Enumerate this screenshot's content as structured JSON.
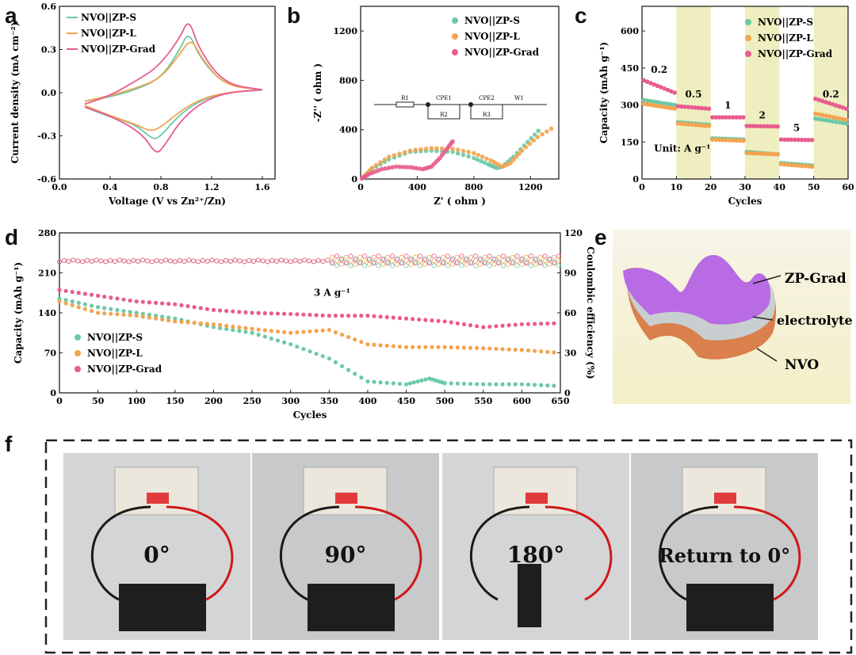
{
  "panel_labels": {
    "a": "a",
    "b": "b",
    "c": "c",
    "d": "d",
    "e": "e",
    "f": "f"
  },
  "colors": {
    "s": "#6cc9a6",
    "l": "#f2a450",
    "grad": "#e85c8f",
    "accent_band": "#efeec0",
    "purple": "#b86be3",
    "grey": "#c9cfd1",
    "orange": "#d9804c"
  },
  "chart_data": [
    {
      "id": "a",
      "type": "line",
      "xlabel": "Voltage (V vs Zn²⁺/Zn)",
      "ylabel": "Current density (mA cm⁻²)",
      "xlim": [
        0.0,
        1.7
      ],
      "ylim": [
        -0.6,
        0.6
      ],
      "xticks": [
        "0.0",
        "0.4",
        "0.8",
        "1.2",
        "1.6"
      ],
      "yticks": [
        "0.6",
        "0.3",
        "0.0",
        "-0.3",
        "-0.6"
      ],
      "legend": [
        "NVO||ZP-S",
        "NVO||ZP-L",
        "NVO||ZP-Grad"
      ],
      "series": [
        {
          "name": "NVO||ZP-S",
          "anodic": [
            [
              0.2,
              -0.06
            ],
            [
              0.4,
              -0.03
            ],
            [
              0.6,
              0.02
            ],
            [
              0.8,
              0.1
            ],
            [
              0.95,
              0.3
            ],
            [
              1.02,
              0.43
            ],
            [
              1.1,
              0.25
            ],
            [
              1.3,
              0.05
            ],
            [
              1.6,
              0.02
            ]
          ],
          "cathodic": [
            [
              1.6,
              0.02
            ],
            [
              1.3,
              0.0
            ],
            [
              1.1,
              -0.06
            ],
            [
              0.95,
              -0.15
            ],
            [
              0.8,
              -0.3
            ],
            [
              0.74,
              -0.33
            ],
            [
              0.6,
              -0.22
            ],
            [
              0.4,
              -0.17
            ],
            [
              0.2,
              -0.1
            ]
          ]
        },
        {
          "name": "NVO||ZP-L",
          "anodic": [
            [
              0.2,
              -0.06
            ],
            [
              0.4,
              -0.02
            ],
            [
              0.6,
              0.03
            ],
            [
              0.8,
              0.1
            ],
            [
              0.95,
              0.27
            ],
            [
              1.04,
              0.38
            ],
            [
              1.12,
              0.24
            ],
            [
              1.3,
              0.05
            ],
            [
              1.6,
              0.02
            ]
          ],
          "cathodic": [
            [
              1.6,
              0.02
            ],
            [
              1.3,
              0.0
            ],
            [
              1.1,
              -0.05
            ],
            [
              0.95,
              -0.13
            ],
            [
              0.8,
              -0.24
            ],
            [
              0.72,
              -0.27
            ],
            [
              0.6,
              -0.22
            ],
            [
              0.4,
              -0.16
            ],
            [
              0.2,
              -0.09
            ]
          ]
        },
        {
          "name": "NVO||ZP-Grad",
          "anodic": [
            [
              0.2,
              -0.08
            ],
            [
              0.4,
              -0.02
            ],
            [
              0.6,
              0.08
            ],
            [
              0.78,
              0.18
            ],
            [
              0.95,
              0.38
            ],
            [
              1.02,
              0.52
            ],
            [
              1.1,
              0.3
            ],
            [
              1.3,
              0.06
            ],
            [
              1.6,
              0.02
            ]
          ],
          "cathodic": [
            [
              1.6,
              0.02
            ],
            [
              1.3,
              0.0
            ],
            [
              1.1,
              -0.08
            ],
            [
              0.95,
              -0.2
            ],
            [
              0.82,
              -0.38
            ],
            [
              0.76,
              -0.43
            ],
            [
              0.65,
              -0.28
            ],
            [
              0.4,
              -0.16
            ],
            [
              0.2,
              -0.1
            ]
          ]
        }
      ]
    },
    {
      "id": "b",
      "type": "scatter",
      "xlabel": "Z' ( ohm )",
      "ylabel": "-Z'' ( ohm )",
      "xlim": [
        0,
        1400
      ],
      "ylim": [
        0,
        1400
      ],
      "xticks": [
        "0",
        "400",
        "800",
        "1200"
      ],
      "yticks": [
        "0",
        "400",
        "800",
        "1200"
      ],
      "legend": [
        "NVO||ZP-S",
        "NVO||ZP-L",
        "NVO||ZP-Grad"
      ],
      "circuit_labels": [
        "R1",
        "CPE1",
        "R2",
        "CPE2",
        "R3",
        "W1"
      ],
      "series": [
        {
          "name": "NVO||ZP-S",
          "points": [
            [
              10,
              5
            ],
            [
              80,
              80
            ],
            [
              200,
              160
            ],
            [
              350,
              220
            ],
            [
              500,
              230
            ],
            [
              650,
              220
            ],
            [
              800,
              170
            ],
            [
              900,
              120
            ],
            [
              960,
              90
            ],
            [
              1000,
              100
            ],
            [
              1080,
              180
            ],
            [
              1180,
              300
            ],
            [
              1280,
              420
            ]
          ]
        },
        {
          "name": "NVO||ZP-L",
          "points": [
            [
              10,
              5
            ],
            [
              80,
              90
            ],
            [
              200,
              180
            ],
            [
              350,
              230
            ],
            [
              500,
              250
            ],
            [
              650,
              245
            ],
            [
              800,
              210
            ],
            [
              920,
              150
            ],
            [
              1000,
              100
            ],
            [
              1060,
              130
            ],
            [
              1140,
              230
            ],
            [
              1250,
              340
            ],
            [
              1380,
              430
            ]
          ]
        },
        {
          "name": "NVO||ZP-Grad",
          "points": [
            [
              10,
              5
            ],
            [
              60,
              40
            ],
            [
              150,
              80
            ],
            [
              250,
              100
            ],
            [
              350,
              95
            ],
            [
              440,
              80
            ],
            [
              500,
              100
            ],
            [
              560,
              170
            ],
            [
              620,
              260
            ],
            [
              660,
              320
            ]
          ]
        }
      ]
    },
    {
      "id": "c",
      "type": "scatter",
      "xlabel": "Cycles",
      "ylabel": "Capacity (mAh g⁻¹)",
      "xlim": [
        0,
        60
      ],
      "ylim": [
        0,
        700
      ],
      "xticks": [
        "0",
        "10",
        "20",
        "30",
        "40",
        "50",
        "60"
      ],
      "yticks": [
        "0",
        "150",
        "300",
        "450",
        "600"
      ],
      "legend": [
        "NVO||ZP-S",
        "NVO||ZP-L",
        "NVO||ZP-Grad"
      ],
      "rate_labels": [
        "0.2",
        "0.5",
        "1",
        "2",
        "5",
        "0.2"
      ],
      "unit_label": "Unit: A g⁻¹",
      "series": [
        {
          "name": "NVO||ZP-S",
          "segments": [
            [
              320,
              300
            ],
            [
              230,
              220
            ],
            [
              165,
              160
            ],
            [
              110,
              100
            ],
            [
              65,
              55
            ],
            [
              245,
              225
            ]
          ]
        },
        {
          "name": "NVO||ZP-L",
          "segments": [
            [
              305,
              285
            ],
            [
              225,
              215
            ],
            [
              160,
              155
            ],
            [
              105,
              100
            ],
            [
              60,
              50
            ],
            [
              265,
              240
            ]
          ]
        },
        {
          "name": "NVO||ZP-Grad",
          "segments": [
            [
              400,
              350
            ],
            [
              295,
              285
            ],
            [
              250,
              250
            ],
            [
              215,
              213
            ],
            [
              160,
              158
            ],
            [
              325,
              285
            ]
          ]
        }
      ]
    },
    {
      "id": "d",
      "type": "scatter",
      "xlabel": "Cycles",
      "ylabel": "Capacity (mAh g⁻¹)",
      "y2label": "Coulombic efficiency (%)",
      "xlim": [
        0,
        650
      ],
      "ylim": [
        0,
        280
      ],
      "y2lim": [
        0,
        120
      ],
      "xticks": [
        "0",
        "50",
        "100",
        "150",
        "200",
        "250",
        "300",
        "350",
        "400",
        "450",
        "500",
        "550",
        "600",
        "650"
      ],
      "yticks": [
        "0",
        "70",
        "140",
        "210",
        "280"
      ],
      "y2ticks": [
        "0",
        "30",
        "60",
        "90",
        "120"
      ],
      "annotation": "3 A g⁻¹",
      "legend": [
        "NVO||ZP-S",
        "NVO||ZP-L",
        "NVO||ZP-Grad"
      ],
      "series": [
        {
          "name": "NVO||ZP-S",
          "points": [
            [
              0,
              165
            ],
            [
              50,
              150
            ],
            [
              100,
              140
            ],
            [
              150,
              130
            ],
            [
              200,
              115
            ],
            [
              250,
              105
            ],
            [
              300,
              85
            ],
            [
              350,
              60
            ],
            [
              400,
              20
            ],
            [
              450,
              15
            ],
            [
              480,
              25
            ],
            [
              500,
              17
            ],
            [
              550,
              15
            ],
            [
              600,
              15
            ],
            [
              650,
              12
            ]
          ]
        },
        {
          "name": "NVO||ZP-L",
          "points": [
            [
              0,
              160
            ],
            [
              50,
              140
            ],
            [
              100,
              135
            ],
            [
              150,
              125
            ],
            [
              200,
              120
            ],
            [
              250,
              112
            ],
            [
              300,
              105
            ],
            [
              350,
              110
            ],
            [
              400,
              85
            ],
            [
              450,
              80
            ],
            [
              500,
              80
            ],
            [
              550,
              78
            ],
            [
              600,
              75
            ],
            [
              650,
              70
            ]
          ]
        },
        {
          "name": "NVO||ZP-Grad",
          "points": [
            [
              0,
              180
            ],
            [
              50,
              170
            ],
            [
              100,
              160
            ],
            [
              150,
              155
            ],
            [
              200,
              145
            ],
            [
              250,
              140
            ],
            [
              300,
              138
            ],
            [
              350,
              135
            ],
            [
              400,
              135
            ],
            [
              450,
              130
            ],
            [
              500,
              125
            ],
            [
              550,
              115
            ],
            [
              600,
              120
            ],
            [
              650,
              122
            ]
          ]
        }
      ],
      "efficiency_mean": 99
    }
  ],
  "panel_e": {
    "labels": [
      "ZP-Grad",
      "electrolyte",
      "NVO"
    ]
  },
  "panel_f": {
    "angles": [
      "0°",
      "90°",
      "180°",
      "Return to 0°"
    ]
  }
}
